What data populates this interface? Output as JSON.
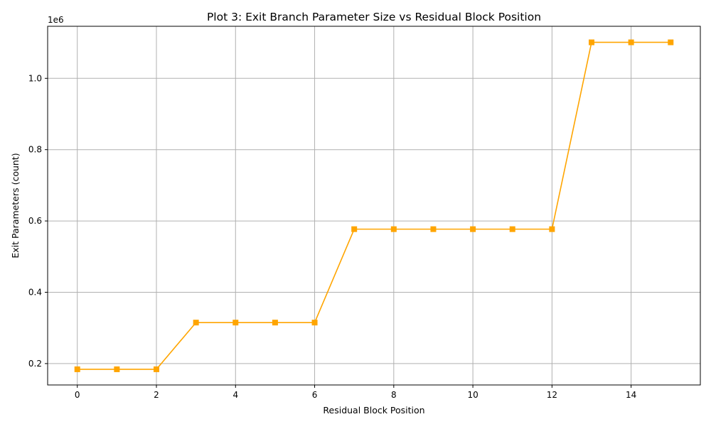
{
  "chart_data": {
    "type": "line",
    "title": "Plot 3: Exit Branch Parameter Size vs Residual Block Position",
    "xlabel": "Residual Block Position",
    "ylabel": "Exit Parameters (count)",
    "y_offset_label": "1e6",
    "y_scale_factor": 1000000,
    "xlim": [
      -0.75,
      15.75
    ],
    "ylim": [
      140000,
      1146000
    ],
    "x_ticks": [
      0,
      2,
      4,
      6,
      8,
      10,
      12,
      14
    ],
    "x_tick_labels": [
      "0",
      "2",
      "4",
      "6",
      "8",
      "10",
      "12",
      "14"
    ],
    "y_ticks": [
      200000,
      400000,
      600000,
      800000,
      1000000
    ],
    "y_tick_labels": [
      "0.2",
      "0.4",
      "0.6",
      "0.8",
      "1.0"
    ],
    "grid": true,
    "series": [
      {
        "color": "#ffa500",
        "marker": "square",
        "x": [
          0,
          1,
          2,
          3,
          4,
          5,
          6,
          7,
          8,
          9,
          10,
          11,
          12,
          13,
          14,
          15
        ],
        "y": [
          184000,
          184000,
          184000,
          315000,
          315000,
          315000,
          315000,
          577000,
          577000,
          577000,
          577000,
          577000,
          577000,
          1101000,
          1101000,
          1101000
        ]
      }
    ]
  }
}
